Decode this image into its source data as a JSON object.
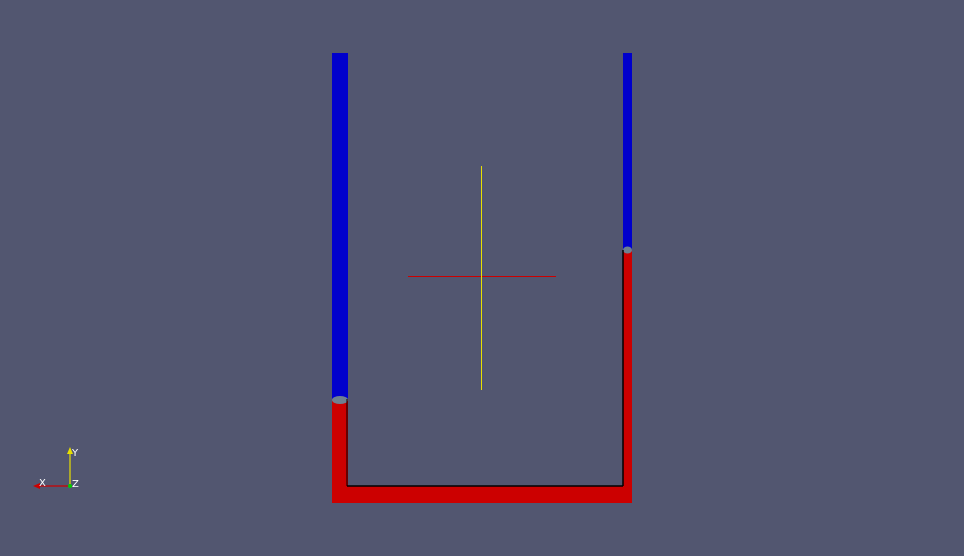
{
  "viewport": {
    "background_color": "#525670"
  },
  "tube": {
    "fluid_colors": {
      "upper_fluid": "#0000cc",
      "lower_fluid": "#cc0000",
      "interface": "#6e8090",
      "wall": "#000000"
    }
  },
  "center_cross": {
    "horizontal_color": "#cc0000",
    "vertical_color": "#e8e000",
    "icon": "center-of-rotation-cross"
  },
  "orientation_axes": {
    "icon": "orientation-axes-icon",
    "x_label": "X",
    "y_label": "Y",
    "z_label": "Z",
    "x_color": "#cc0000",
    "y_color": "#e8e000",
    "z_color": "#00cc00"
  }
}
